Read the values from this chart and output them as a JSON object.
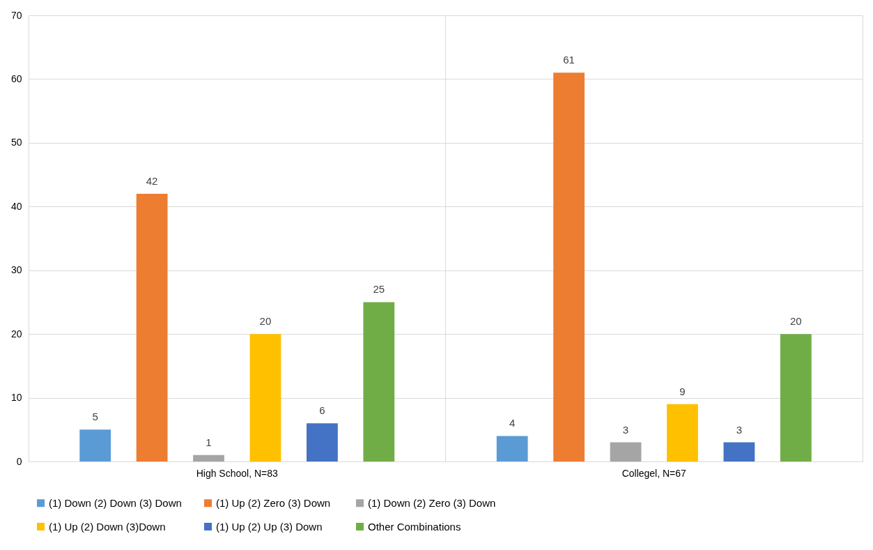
{
  "chart_data": {
    "type": "bar",
    "categories": [
      "High School, N=83",
      "Collegel, N=67"
    ],
    "series": [
      {
        "name": "(1) Down (2) Down (3) Down",
        "color": "#5b9bd5",
        "values": [
          5,
          4
        ]
      },
      {
        "name": "(1) Up (2)  Zero (3) Down",
        "color": "#ed7d31",
        "values": [
          42,
          61
        ]
      },
      {
        "name": "(1) Down (2) Zero (3) Down",
        "color": "#a5a5a5",
        "values": [
          1,
          3
        ]
      },
      {
        "name": "(1) Up (2) Down (3)Down",
        "color": "#ffc000",
        "values": [
          20,
          9
        ]
      },
      {
        "name": "(1) Up (2) Up (3) Down",
        "color": "#4472c4",
        "values": [
          6,
          3
        ]
      },
      {
        "name": "Other Combinations",
        "color": "#70ad47",
        "values": [
          25,
          20
        ]
      }
    ],
    "ylim": [
      0,
      70
    ],
    "yticks": [
      0,
      10,
      20,
      30,
      40,
      50,
      60,
      70
    ],
    "grid": true,
    "legend": "bottom",
    "data_labels": true
  }
}
